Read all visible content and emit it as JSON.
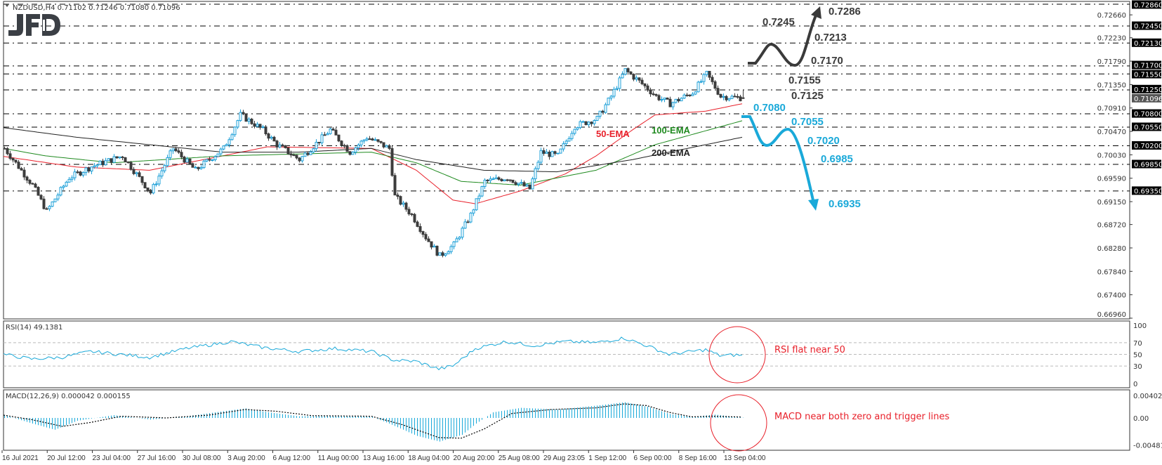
{
  "header": {
    "symbol_line": "NZDUSD,H4  0.71102 0.71246 0.71080 0.71096",
    "logo": "JFD"
  },
  "colors": {
    "bull_outline": "#1ea0d8",
    "bear_fill": "#3c3c3c",
    "ema50": "#e8202a",
    "ema100": "#1f8a1f",
    "ema200": "#222222",
    "up_scenario": "#3a3a3a",
    "down_scenario": "#1aa9d9",
    "rsi": "#1aa9d9",
    "macd_hist": "#1aa9d9",
    "annotation": "#e8202a"
  },
  "chart_data": [
    {
      "type": "candlestick",
      "panel": "price",
      "symbol": "NZDUSD",
      "timeframe": "H4",
      "ohlc_last": {
        "open": 0.71102,
        "high": 0.71246,
        "low": 0.7108,
        "close": 0.71096
      },
      "ylim": [
        0.6696,
        0.7286
      ],
      "y_ticks": [
        "0.72660",
        "0.72230",
        "0.71790",
        "0.71350",
        "0.70910",
        "0.70470",
        "0.70030",
        "0.69590",
        "0.69150",
        "0.68720",
        "0.68280",
        "0.67840",
        "0.67400",
        "0.66960"
      ],
      "x_ticks": [
        "16 Jul 2021",
        "20 Jul 12:00",
        "23 Jul 04:00",
        "27 Jul 16:00",
        "30 Jul 08:00",
        "3 Aug 20:00",
        "6 Aug 12:00",
        "11 Aug 00:00",
        "13 Aug 16:00",
        "18 Aug 04:00",
        "20 Aug 20:00",
        "25 Aug 08:00",
        "29 Aug 23:05",
        "1 Sep 12:00",
        "6 Sep 00:00",
        "8 Sep 16:00",
        "13 Sep 04:00"
      ],
      "current_price_label": "0.71096",
      "level_labels": [
        "0.72860",
        "0.72450",
        "0.72130",
        "0.71700",
        "0.71550",
        "0.71250",
        "0.70800",
        "0.70550",
        "0.70200",
        "0.69850",
        "0.69350"
      ],
      "levels": [
        0.7286,
        0.7245,
        0.7213,
        0.717,
        0.7155,
        0.7125,
        0.708,
        0.7055,
        0.702,
        0.6985,
        0.6935
      ],
      "close_path": [
        [
          0,
          0.7015
        ],
        [
          10,
          0.6946
        ],
        [
          15,
          0.6897
        ],
        [
          23,
          0.696
        ],
        [
          31,
          0.6981
        ],
        [
          42,
          0.7001
        ],
        [
          52,
          0.6932
        ],
        [
          60,
          0.7015
        ],
        [
          68,
          0.6974
        ],
        [
          78,
          0.7015
        ],
        [
          84,
          0.7078
        ],
        [
          92,
          0.705
        ],
        [
          97,
          0.7022
        ],
        [
          105,
          0.6994
        ],
        [
          116,
          0.705
        ],
        [
          123,
          0.7008
        ],
        [
          129,
          0.7036
        ],
        [
          137,
          0.7015
        ],
        [
          139,
          0.6925
        ],
        [
          145,
          0.689
        ],
        [
          150,
          0.6848
        ],
        [
          155,
          0.6813
        ],
        [
          160,
          0.6834
        ],
        [
          166,
          0.689
        ],
        [
          171,
          0.6953
        ],
        [
          179,
          0.696
        ],
        [
          187,
          0.6939
        ],
        [
          191,
          0.7008
        ],
        [
          197,
          0.7001
        ],
        [
          203,
          0.7057
        ],
        [
          211,
          0.7071
        ],
        [
          216,
          0.7113
        ],
        [
          221,
          0.7162
        ],
        [
          226,
          0.7141
        ],
        [
          232,
          0.7113
        ],
        [
          237,
          0.7099
        ],
        [
          245,
          0.712
        ],
        [
          250,
          0.7155
        ],
        [
          255,
          0.7113
        ],
        [
          263,
          0.71096
        ]
      ],
      "series": [
        {
          "name": "50-EMA",
          "points": [
            [
              0,
              0.7
            ],
            [
              26,
              0.698
            ],
            [
              52,
              0.6974
            ],
            [
              78,
              0.7001
            ],
            [
              94,
              0.7018
            ],
            [
              131,
              0.7015
            ],
            [
              147,
              0.6974
            ],
            [
              160,
              0.6918
            ],
            [
              168,
              0.6911
            ],
            [
              184,
              0.6935
            ],
            [
              200,
              0.6967
            ],
            [
              211,
              0.7001
            ],
            [
              224,
              0.705
            ],
            [
              232,
              0.7078
            ],
            [
              250,
              0.7085
            ],
            [
              263,
              0.7099
            ]
          ]
        },
        {
          "name": "100-EMA",
          "points": [
            [
              0,
              0.7015
            ],
            [
              15,
              0.7001
            ],
            [
              39,
              0.6988
            ],
            [
              78,
              0.7001
            ],
            [
              131,
              0.7008
            ],
            [
              147,
              0.6988
            ],
            [
              163,
              0.6953
            ],
            [
              184,
              0.6946
            ],
            [
              211,
              0.6974
            ],
            [
              232,
              0.7022
            ],
            [
              263,
              0.7067
            ]
          ]
        },
        {
          "name": "200-EMA",
          "points": [
            [
              0,
              0.7054
            ],
            [
              26,
              0.7036
            ],
            [
              52,
              0.7022
            ],
            [
              78,
              0.7008
            ],
            [
              105,
              0.7008
            ],
            [
              131,
              0.7015
            ],
            [
              147,
              0.6994
            ],
            [
              171,
              0.6974
            ],
            [
              197,
              0.6971
            ],
            [
              224,
              0.6994
            ],
            [
              250,
              0.7022
            ],
            [
              263,
              0.7036
            ]
          ]
        }
      ],
      "scenarios": {
        "up": {
          "labels": [
            "0.7245",
            "0.7286",
            "0.7213",
            "0.7170",
            "0.7155",
            "0.7125"
          ]
        },
        "down": {
          "labels": [
            "0.7080",
            "0.7055",
            "0.7020",
            "0.6985",
            "0.6935"
          ]
        }
      }
    },
    {
      "type": "line",
      "panel": "rsi",
      "title": "RSI(14) 49.1381",
      "ylim": [
        0,
        100
      ],
      "y_ticks": [
        "100",
        "70",
        "50",
        "30",
        "0"
      ],
      "levels": [
        70,
        50,
        30
      ],
      "points": [
        [
          0,
          50
        ],
        [
          10,
          42
        ],
        [
          21,
          45
        ],
        [
          31,
          55
        ],
        [
          52,
          45
        ],
        [
          65,
          60
        ],
        [
          81,
          72
        ],
        [
          92,
          62
        ],
        [
          105,
          55
        ],
        [
          118,
          60
        ],
        [
          131,
          55
        ],
        [
          139,
          40
        ],
        [
          147,
          38
        ],
        [
          155,
          25
        ],
        [
          160,
          30
        ],
        [
          168,
          60
        ],
        [
          179,
          72
        ],
        [
          189,
          65
        ],
        [
          200,
          72
        ],
        [
          211,
          70
        ],
        [
          221,
          78
        ],
        [
          229,
          65
        ],
        [
          237,
          50
        ],
        [
          250,
          58
        ],
        [
          255,
          48
        ],
        [
          263,
          49.14
        ]
      ],
      "annotation": "RSI flat near 50"
    },
    {
      "type": "bar",
      "panel": "macd",
      "title": "MACD(12,26,9) 0.000042 0.000155",
      "ylim": [
        -0.004816,
        0.004024
      ],
      "y_ticks": [
        "0.004024",
        "0.00",
        "-0.004816"
      ],
      "macd_points": [
        [
          0,
          0.0005
        ],
        [
          10,
          -0.001
        ],
        [
          18,
          -0.0021
        ],
        [
          26,
          -0.0005
        ],
        [
          39,
          0.0005
        ],
        [
          52,
          -0.0003
        ],
        [
          65,
          0.0003
        ],
        [
          78,
          0.0012
        ],
        [
          86,
          0.0017
        ],
        [
          94,
          0.001
        ],
        [
          105,
          0.0003
        ],
        [
          118,
          0.0004
        ],
        [
          131,
          0.0002
        ],
        [
          137,
          -0.001
        ],
        [
          147,
          -0.0032
        ],
        [
          155,
          -0.0042
        ],
        [
          163,
          -0.003
        ],
        [
          168,
          -0.001
        ],
        [
          174,
          0.001
        ],
        [
          184,
          0.0018
        ],
        [
          197,
          0.0015
        ],
        [
          211,
          0.0022
        ],
        [
          221,
          0.0028
        ],
        [
          229,
          0.002
        ],
        [
          237,
          0.0007
        ],
        [
          245,
          0.0002
        ],
        [
          253,
          0.0006
        ],
        [
          263,
          4.2e-05
        ]
      ],
      "signal_points": [
        [
          0,
          0.0005
        ],
        [
          10,
          -0.0003
        ],
        [
          21,
          -0.0015
        ],
        [
          31,
          -0.0008
        ],
        [
          42,
          0.0003
        ],
        [
          58,
          0.0
        ],
        [
          73,
          0.0005
        ],
        [
          86,
          0.0015
        ],
        [
          97,
          0.0012
        ],
        [
          110,
          0.0004
        ],
        [
          131,
          0.0003
        ],
        [
          142,
          -0.0012
        ],
        [
          155,
          -0.0035
        ],
        [
          163,
          -0.0036
        ],
        [
          171,
          -0.002
        ],
        [
          181,
          0.0008
        ],
        [
          195,
          0.0015
        ],
        [
          211,
          0.0018
        ],
        [
          221,
          0.0025
        ],
        [
          229,
          0.0022
        ],
        [
          237,
          0.001
        ],
        [
          245,
          0.0002
        ],
        [
          253,
          0.0003
        ],
        [
          263,
          0.000155
        ]
      ],
      "annotation": "MACD near both zero and trigger lines"
    }
  ]
}
